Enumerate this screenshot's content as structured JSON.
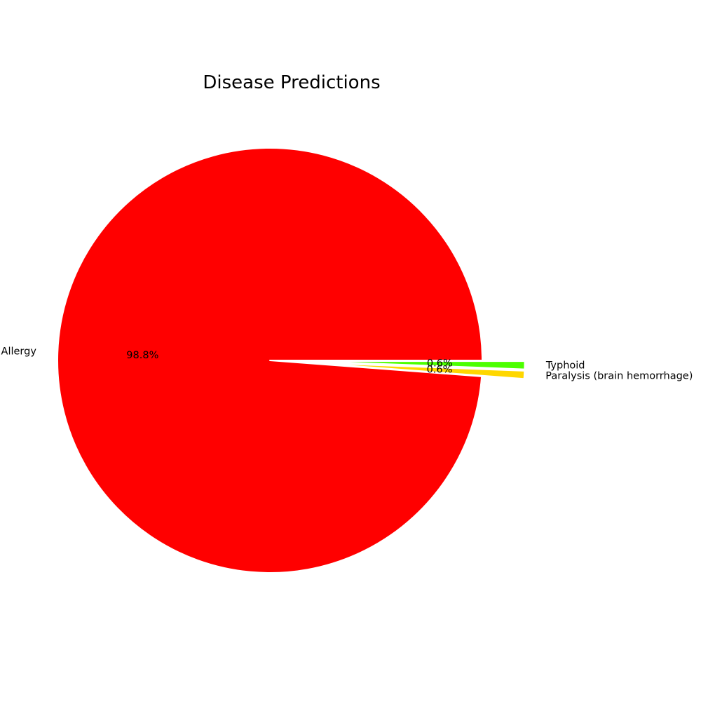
{
  "chart_data": {
    "type": "pie",
    "title": "Disease Predictions",
    "slices": [
      {
        "label": "Allergy",
        "value": 98.8,
        "pct_label": "98.8%",
        "color": "#ff0000"
      },
      {
        "label": "Paralysis (brain hemorrhage)",
        "value": 0.6,
        "pct_label": "0.6%",
        "color": "#ffd700"
      },
      {
        "label": "Typhoid",
        "value": 0.6,
        "pct_label": "0.6%",
        "color": "#4cff00"
      }
    ],
    "exploded": [
      "Paralysis (brain hemorrhage)",
      "Typhoid"
    ],
    "legend": "none"
  }
}
